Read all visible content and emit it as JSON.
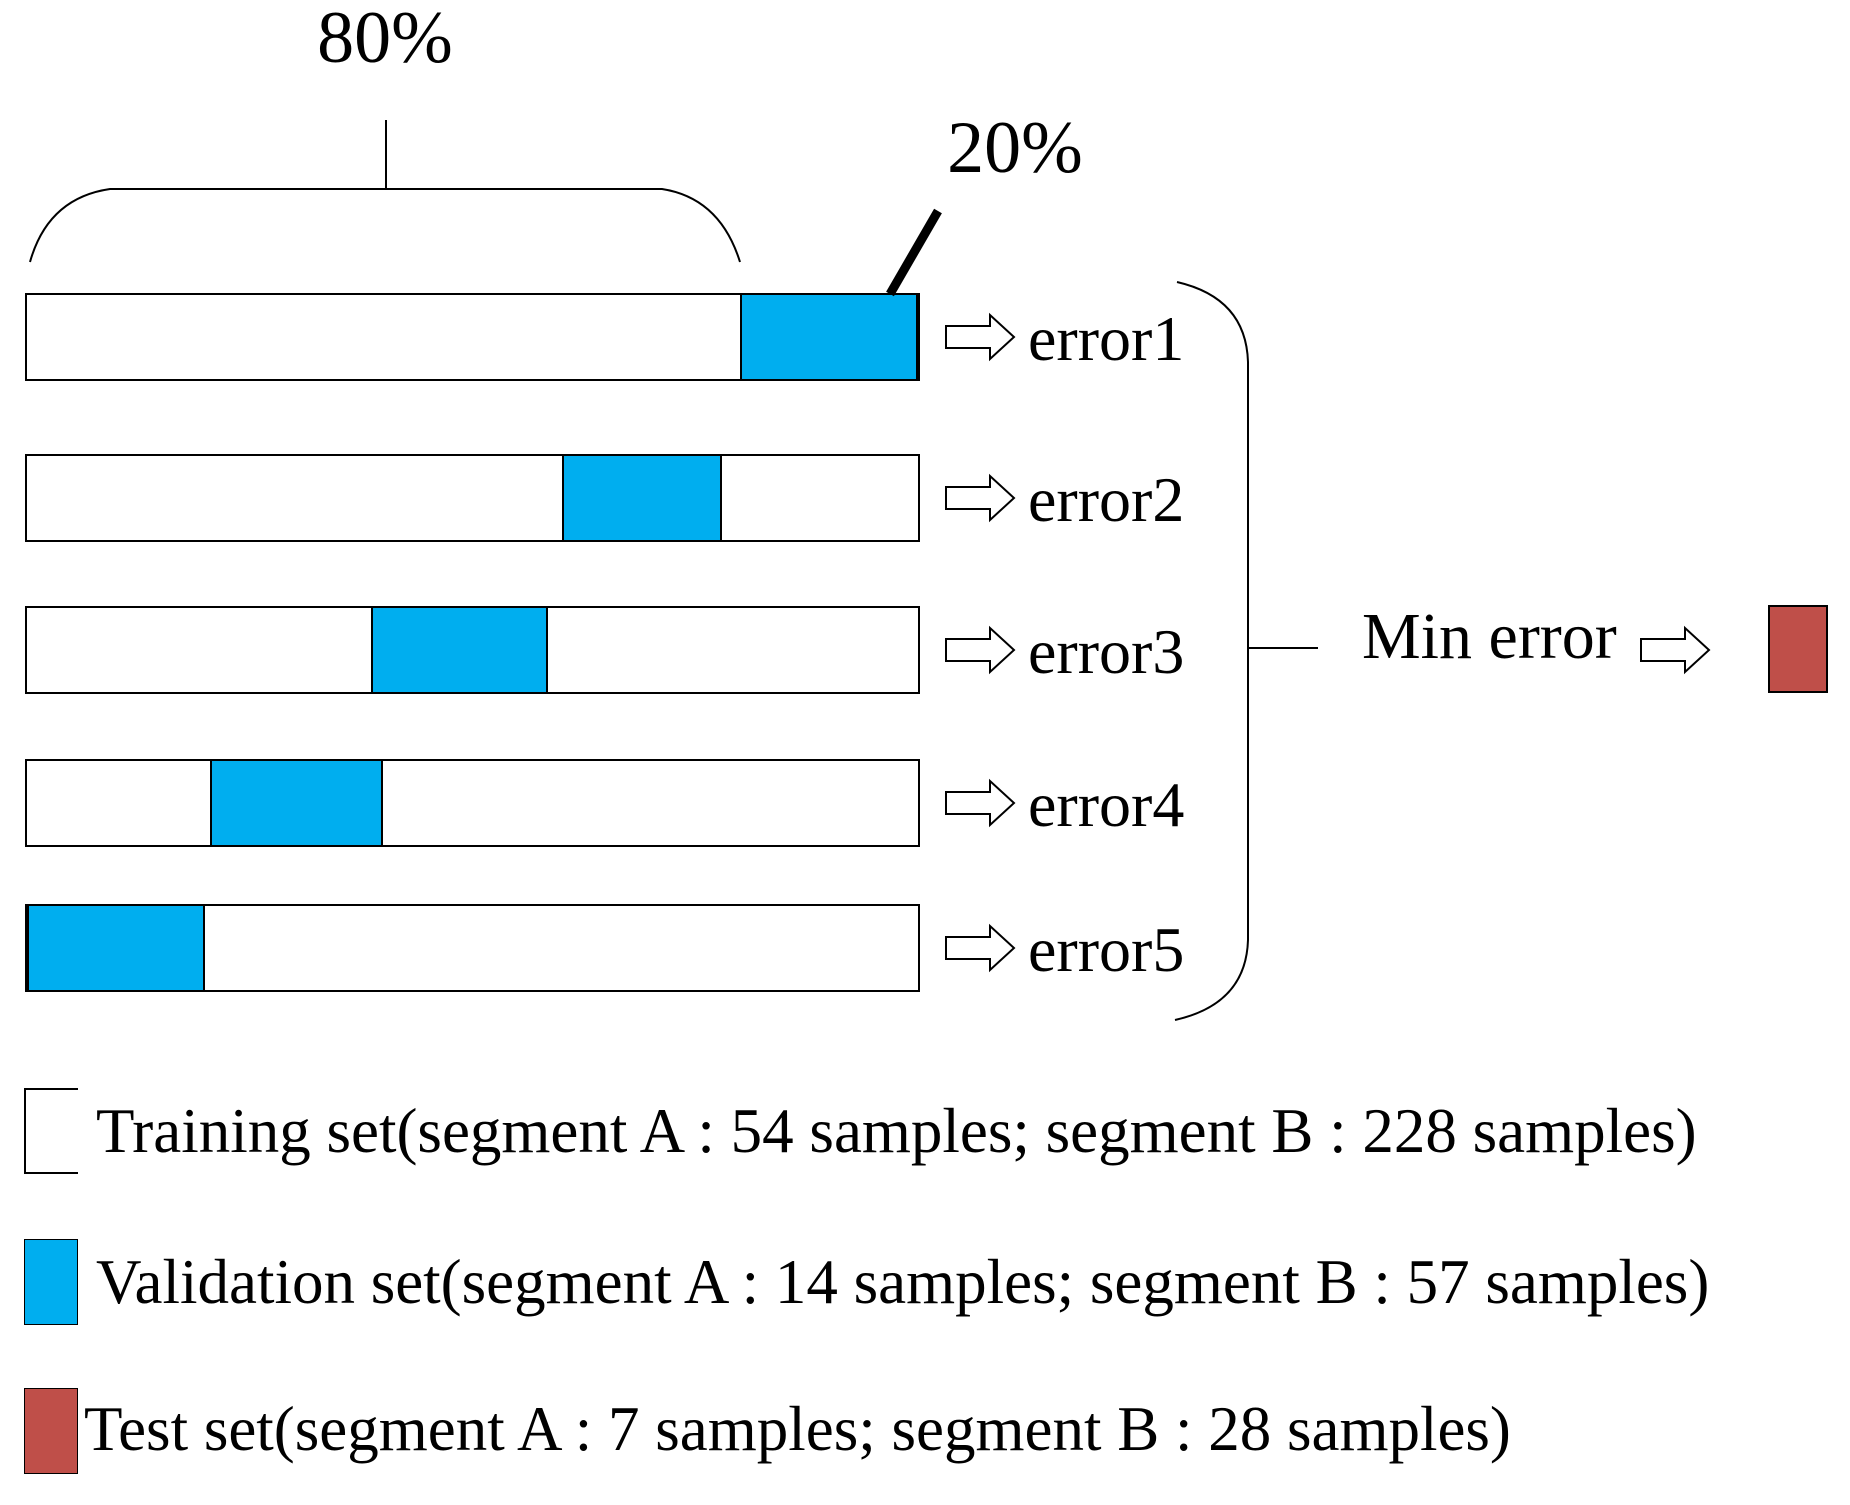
{
  "figure": {
    "training_fraction_label": "80%",
    "validation_fraction_label": "20%",
    "min_error_label": "Min error"
  },
  "folds": [
    {
      "error_label": "error1",
      "validation_start_pct": 80,
      "validation_end_pct": 100
    },
    {
      "error_label": "error2",
      "validation_start_pct": 60,
      "validation_end_pct": 78
    },
    {
      "error_label": "error3",
      "validation_start_pct": 38.6,
      "validation_end_pct": 58.5
    },
    {
      "error_label": "error4",
      "validation_start_pct": 20.5,
      "validation_end_pct": 40
    },
    {
      "error_label": "error5",
      "validation_start_pct": 0,
      "validation_end_pct": 20
    }
  ],
  "legend": [
    {
      "name": "training",
      "color": "#FFFFFF",
      "label": "Training set(segment A : 54 samples; segment B : 228 samples)"
    },
    {
      "name": "validation",
      "color": "#00AEEF",
      "label": "Validation set(segment A : 14 samples; segment B : 57 samples)"
    },
    {
      "name": "test",
      "color": "#BF4F49",
      "label": "Test set(segment A : 7 samples; segment B : 28 samples)"
    }
  ],
  "colors": {
    "validation_blue": "#00AEEF",
    "test_red": "#BF4F49",
    "line_black": "#000000"
  }
}
